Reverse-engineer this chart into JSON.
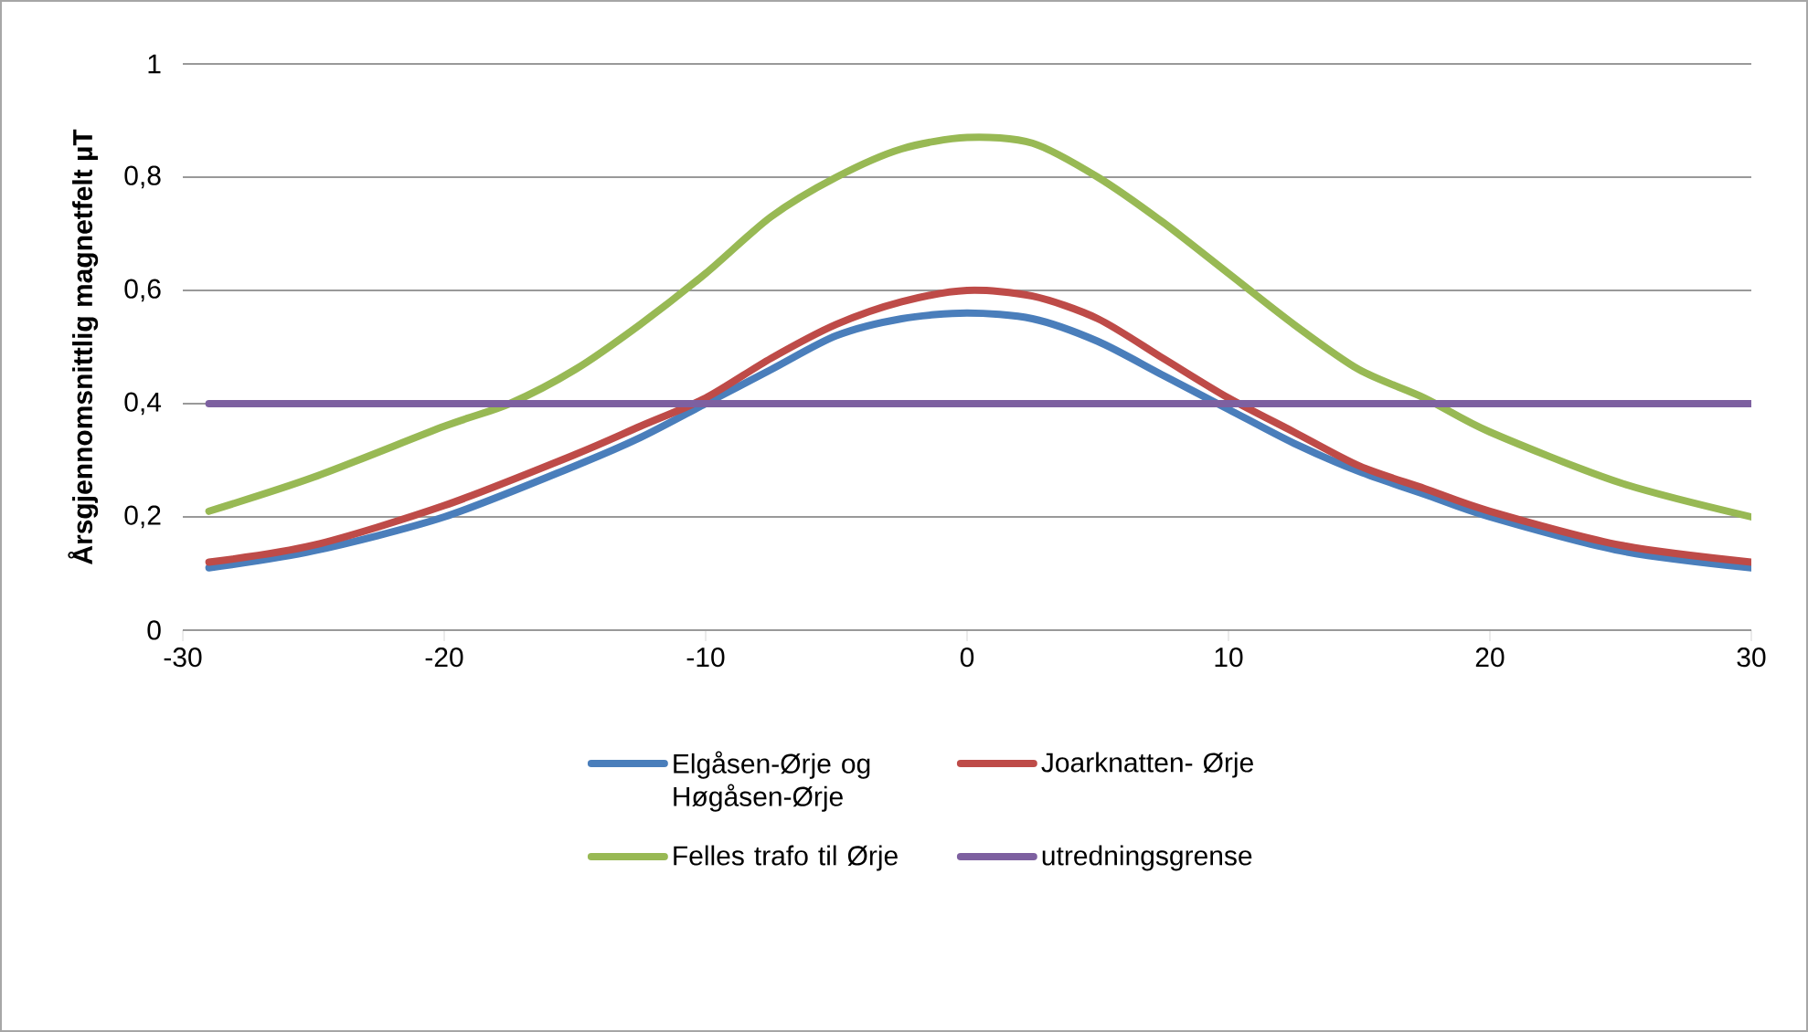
{
  "chart_data": {
    "type": "line",
    "ylabel": "Årsgjennomsnittlig magnetfelt µT",
    "xlim": [
      -30,
      30
    ],
    "xticks": [
      -30,
      -20,
      -10,
      0,
      10,
      20,
      30
    ],
    "ylim": [
      0,
      1
    ],
    "yticks": [
      0,
      {
        "value": 0.2,
        "label": "0,2"
      },
      {
        "value": 0.4,
        "label": "0,4"
      },
      {
        "value": 0.6,
        "label": "0,6"
      },
      {
        "value": 0.8,
        "label": "0,8"
      },
      1
    ],
    "grid": "y",
    "legend": "bottom",
    "series": [
      {
        "name": "Elgåsen-Ørje og Høgåsen-Ørje",
        "color": "#4a7ebb",
        "x": [
          -29,
          -25,
          -20,
          -15,
          -12.5,
          -10,
          -7.5,
          -5,
          -2.5,
          0,
          2.5,
          5,
          7.5,
          10,
          12.5,
          15,
          17.5,
          20,
          25,
          30
        ],
        "values": [
          0.11,
          0.14,
          0.2,
          0.29,
          0.34,
          0.4,
          0.46,
          0.52,
          0.55,
          0.56,
          0.55,
          0.51,
          0.45,
          0.39,
          0.33,
          0.28,
          0.24,
          0.2,
          0.14,
          0.11
        ]
      },
      {
        "name": "Joarknatten- Ørje",
        "color": "#be4b48",
        "x": [
          -29,
          -25,
          -20,
          -15,
          -12.5,
          -10,
          -7.5,
          -5,
          -2.5,
          0,
          2.5,
          5,
          7.5,
          10,
          12.5,
          15,
          17.5,
          20,
          25,
          30
        ],
        "values": [
          0.12,
          0.15,
          0.22,
          0.31,
          0.36,
          0.41,
          0.48,
          0.54,
          0.58,
          0.6,
          0.59,
          0.55,
          0.48,
          0.41,
          0.35,
          0.29,
          0.25,
          0.21,
          0.15,
          0.12
        ]
      },
      {
        "name": "Felles trafo til Ørje",
        "color": "#98b954",
        "x": [
          -29,
          -25,
          -20,
          -17.5,
          -15,
          -12.5,
          -10,
          -7.5,
          -5,
          -2.5,
          0,
          2.5,
          5,
          7.5,
          10,
          12.5,
          15,
          17.5,
          20,
          25,
          30
        ],
        "values": [
          0.21,
          0.27,
          0.36,
          0.4,
          0.46,
          0.54,
          0.63,
          0.73,
          0.8,
          0.85,
          0.87,
          0.86,
          0.8,
          0.72,
          0.63,
          0.54,
          0.46,
          0.41,
          0.35,
          0.26,
          0.2
        ]
      },
      {
        "name": "utredningsgrense",
        "color": "#7d60a0",
        "x": [
          -29,
          30
        ],
        "values": [
          0.4,
          0.4
        ]
      }
    ]
  }
}
